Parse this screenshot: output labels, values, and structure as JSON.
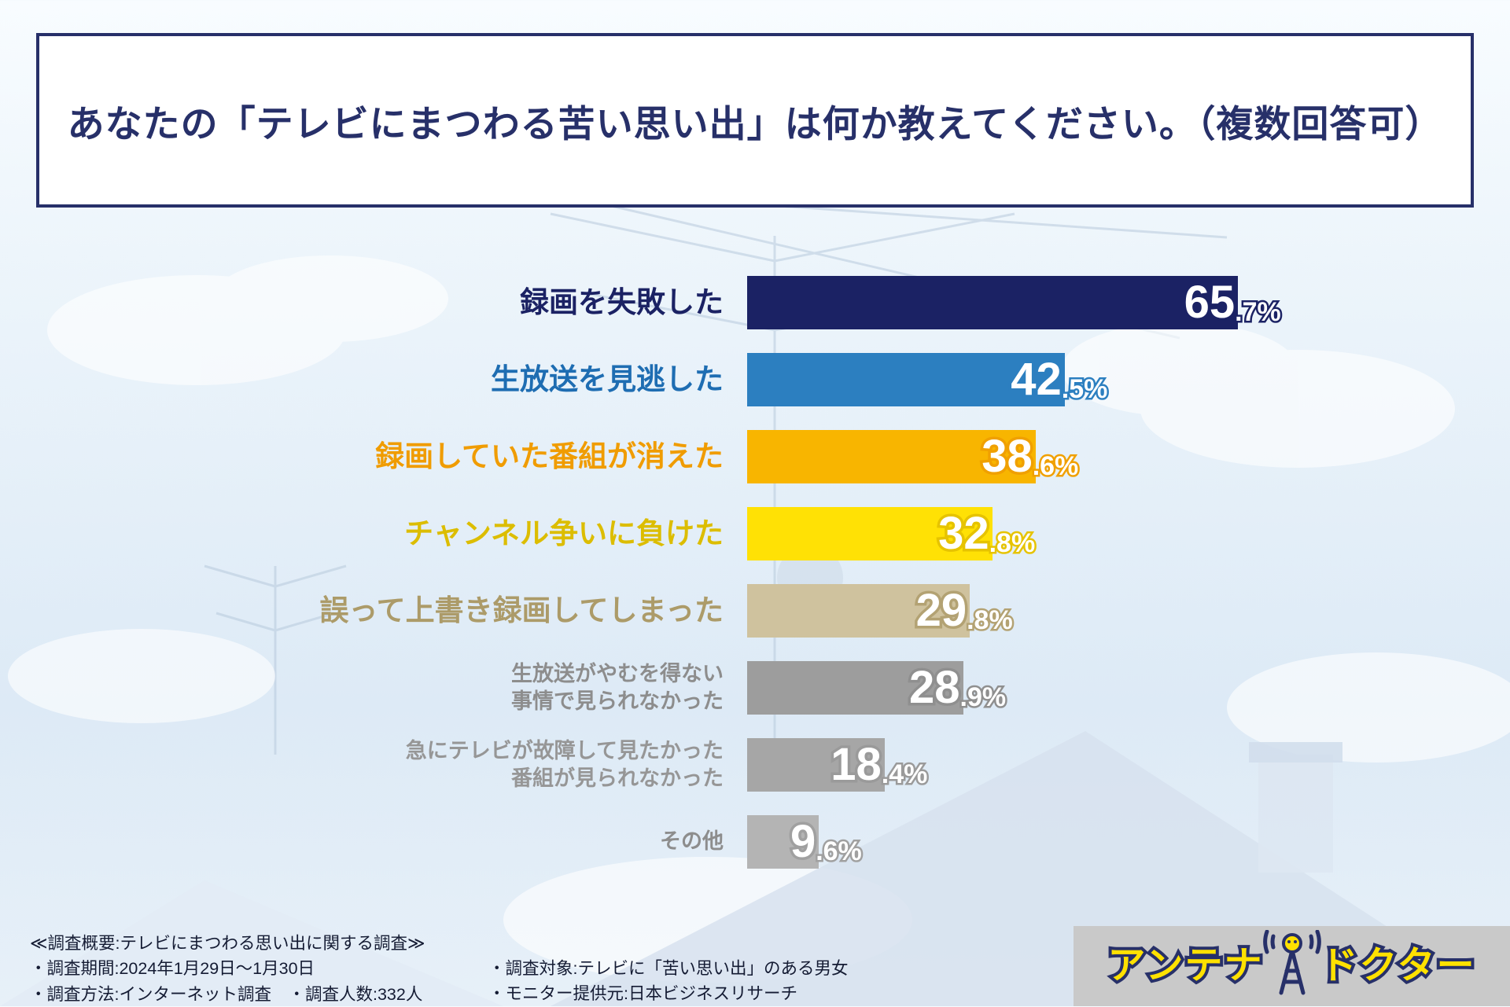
{
  "header": {
    "title": "あなたの「テレビにまつわる苦い思い出」は何か教えてください。（複数回答可）"
  },
  "chart_data": {
    "type": "bar",
    "orientation": "horizontal",
    "unit": "%",
    "xlim": [
      0,
      100
    ],
    "grid": false,
    "legend": "none",
    "categories": [
      "録画を失敗した",
      "生放送を見逃した",
      "録画していた番組が消えた",
      "チャンネル争いに負けた",
      "誤って上書き録画してしまった",
      "生放送がやむを得ない事情で見られなかった",
      "急にテレビが故障して見たかった番組が見られなかった",
      "その他"
    ],
    "values": [
      65.7,
      42.5,
      38.6,
      32.8,
      29.8,
      28.9,
      18.4,
      9.6
    ],
    "rows": [
      {
        "label_lines": [
          "録画を失敗した"
        ],
        "small": false,
        "value": 65.7,
        "value_int": "65",
        "value_dec": ".7%",
        "bar_color": "#1b2264",
        "label_color": "#1b2264",
        "stroke_color": "#1b2264"
      },
      {
        "label_lines": [
          "生放送を見逃した"
        ],
        "small": false,
        "value": 42.5,
        "value_int": "42",
        "value_dec": ".5%",
        "bar_color": "#2c7fc0",
        "label_color": "#1e6db2",
        "stroke_color": "#2c7fc0"
      },
      {
        "label_lines": [
          "録画していた番組が消えた"
        ],
        "small": false,
        "value": 38.6,
        "value_int": "38",
        "value_dec": ".6%",
        "bar_color": "#f8b500",
        "label_color": "#f09c00",
        "stroke_color": "#f0a000"
      },
      {
        "label_lines": [
          "チャンネル争いに負けた"
        ],
        "small": false,
        "value": 32.8,
        "value_int": "32",
        "value_dec": ".8%",
        "bar_color": "#ffe105",
        "label_color": "#dcbd00",
        "stroke_color": "#e6c300"
      },
      {
        "label_lines": [
          "誤って上書き録画してしまった"
        ],
        "small": false,
        "value": 29.8,
        "value_int": "29",
        "value_dec": ".8%",
        "bar_color": "#cfc29e",
        "label_color": "#ac9b69",
        "stroke_color": "#b3a273"
      },
      {
        "label_lines": [
          "生放送がやむを得ない",
          "事情で見られなかった"
        ],
        "small": true,
        "value": 28.9,
        "value_int": "28",
        "value_dec": ".9%",
        "bar_color": "#9d9d9d",
        "label_color": "#8d8d8d",
        "stroke_color": "#8f8f8f"
      },
      {
        "label_lines": [
          "急にテレビが故障して見たかった",
          "番組が見られなかった"
        ],
        "small": true,
        "value": 18.4,
        "value_int": "18",
        "value_dec": ".4%",
        "bar_color": "#a6a6a6",
        "label_color": "#969696",
        "stroke_color": "#9a9a9a"
      },
      {
        "label_lines": [
          "その他"
        ],
        "small": true,
        "value": 9.6,
        "value_int": "9",
        "value_dec": ".6%",
        "bar_color": "#b4b4b4",
        "label_color": "#8d8d8d",
        "stroke_color": "#a0a0a0"
      }
    ]
  },
  "footer": {
    "line1": "≪調査概要:テレビにまつわる思い出に関する調査≫",
    "line2": "・調査期間:2024年1月29日～1月30日",
    "line3": "・調査方法:インターネット調査　・調査人数:332人",
    "col2_line1": "・調査対象:テレビに「苦い思い出」のある男女",
    "col2_line2": "・モニター提供元:日本ビジネスリサーチ"
  },
  "logo": {
    "text_left": "アンテナ",
    "text_right": "ドクター",
    "mark": "antenna-icon"
  }
}
